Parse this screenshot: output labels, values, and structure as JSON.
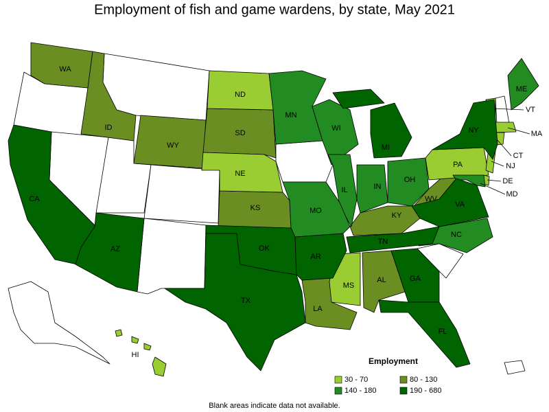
{
  "title": "Employment of fish and game wardens, by state, May 2021",
  "legend": {
    "title": "Employment",
    "items": [
      {
        "label": "30 - 70",
        "color": "#9acd32"
      },
      {
        "label": "80 - 130",
        "color": "#6b8e23"
      },
      {
        "label": "140 - 180",
        "color": "#228b22"
      },
      {
        "label": "190 - 680",
        "color": "#006400"
      }
    ]
  },
  "states": [
    {
      "label": "WA",
      "color": "#6b8e23"
    },
    {
      "label": "ID",
      "color": "#6b8e23"
    },
    {
      "label": "WY",
      "color": "#6b8e23"
    },
    {
      "label": "SD",
      "color": "#6b8e23"
    },
    {
      "label": "KS",
      "color": "#6b8e23"
    },
    {
      "label": "WV",
      "color": "#6b8e23"
    },
    {
      "label": "KY",
      "color": "#6b8e23"
    },
    {
      "label": "AL",
      "color": "#6b8e23"
    },
    {
      "label": "LA",
      "color": "#6b8e23"
    },
    {
      "label": "ND",
      "color": "#9acd32"
    },
    {
      "label": "NE",
      "color": "#9acd32"
    },
    {
      "label": "MS",
      "color": "#9acd32"
    },
    {
      "label": "PA",
      "color": "#9acd32"
    },
    {
      "label": "VT",
      "color": "#9acd32"
    },
    {
      "label": "MA",
      "color": "#9acd32"
    },
    {
      "label": "CT",
      "color": "#9acd32"
    },
    {
      "label": "NJ",
      "color": "#9acd32"
    },
    {
      "label": "DE",
      "color": "#9acd32"
    },
    {
      "label": "HI",
      "color": "#9acd32"
    },
    {
      "label": "MN",
      "color": "#228b22"
    },
    {
      "label": "WI",
      "color": "#228b22"
    },
    {
      "label": "IL",
      "color": "#228b22"
    },
    {
      "label": "IN",
      "color": "#228b22"
    },
    {
      "label": "OH",
      "color": "#228b22"
    },
    {
      "label": "MO",
      "color": "#228b22"
    },
    {
      "label": "NC",
      "color": "#228b22"
    },
    {
      "label": "ME",
      "color": "#228b22"
    },
    {
      "label": "MD",
      "color": "#228b22"
    },
    {
      "label": "CA",
      "color": "#006400"
    },
    {
      "label": "AZ",
      "color": "#006400"
    },
    {
      "label": "TX",
      "color": "#006400"
    },
    {
      "label": "OK",
      "color": "#006400"
    },
    {
      "label": "AR",
      "color": "#006400"
    },
    {
      "label": "TN",
      "color": "#006400"
    },
    {
      "label": "MI",
      "color": "#006400"
    },
    {
      "label": "NY",
      "color": "#006400"
    },
    {
      "label": "VA",
      "color": "#006400"
    },
    {
      "label": "GA",
      "color": "#006400"
    },
    {
      "label": "FL",
      "color": "#006400"
    }
  ],
  "footnote": "Blank areas indicate data not available."
}
